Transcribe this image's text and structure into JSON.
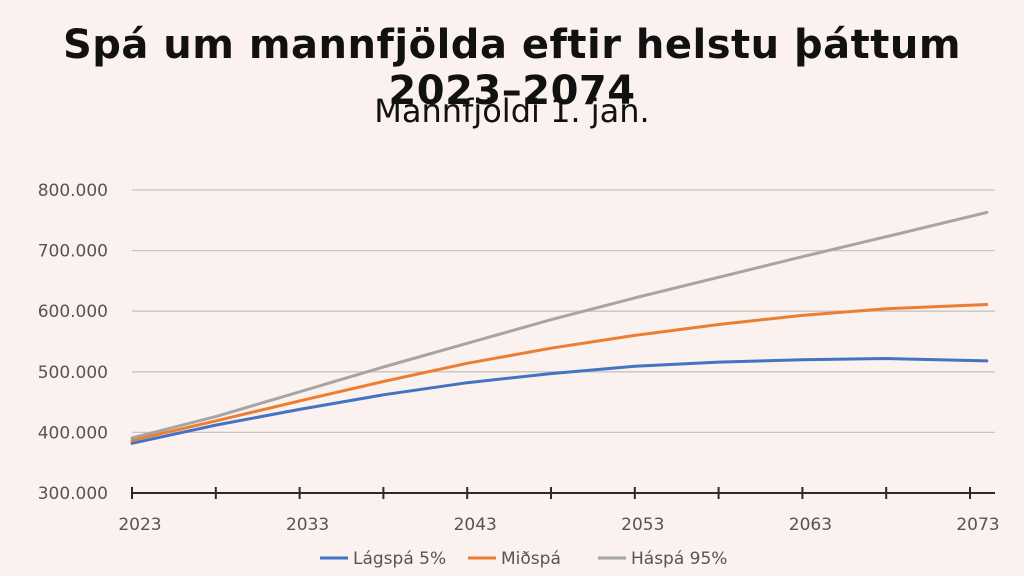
{
  "chart_data": {
    "type": "line",
    "title": "Spá um mannfjölda eftir helstu þáttum 2023–2074",
    "subtitle": "Mannfjöldi 1. jan.",
    "xlabel": "",
    "ylabel": "",
    "xlim": [
      2023,
      2074
    ],
    "ylim": [
      300000,
      800000
    ],
    "x_ticks": [
      2023,
      2033,
      2043,
      2053,
      2063,
      2073
    ],
    "x_tick_labels": [
      "2023",
      "2033",
      "2043",
      "2053",
      "2063",
      "2073"
    ],
    "y_ticks": [
      300000,
      400000,
      500000,
      600000,
      700000,
      800000
    ],
    "y_tick_labels": [
      "300.000",
      "400.000",
      "500.000",
      "600.000",
      "700.000",
      "800.000"
    ],
    "grid": true,
    "legend_position": "bottom",
    "x": [
      2023,
      2028,
      2033,
      2038,
      2043,
      2048,
      2053,
      2058,
      2063,
      2068,
      2074
    ],
    "series": [
      {
        "name": "Lágspá 5%",
        "color": "#4472c4",
        "values": [
          382000,
          412000,
          438000,
          462000,
          482000,
          497000,
          509000,
          516000,
          520000,
          522000,
          518000
        ]
      },
      {
        "name": "Miðspá",
        "color": "#ed7d31",
        "values": [
          387000,
          419000,
          452000,
          484000,
          514000,
          539000,
          560000,
          578000,
          593000,
          604000,
          611000
        ]
      },
      {
        "name": "Háspá 95%",
        "color": "#a5a5a5",
        "values": [
          391000,
          426000,
          467000,
          508000,
          547000,
          586000,
          622000,
          656000,
          690000,
          723000,
          763000
        ]
      }
    ]
  }
}
